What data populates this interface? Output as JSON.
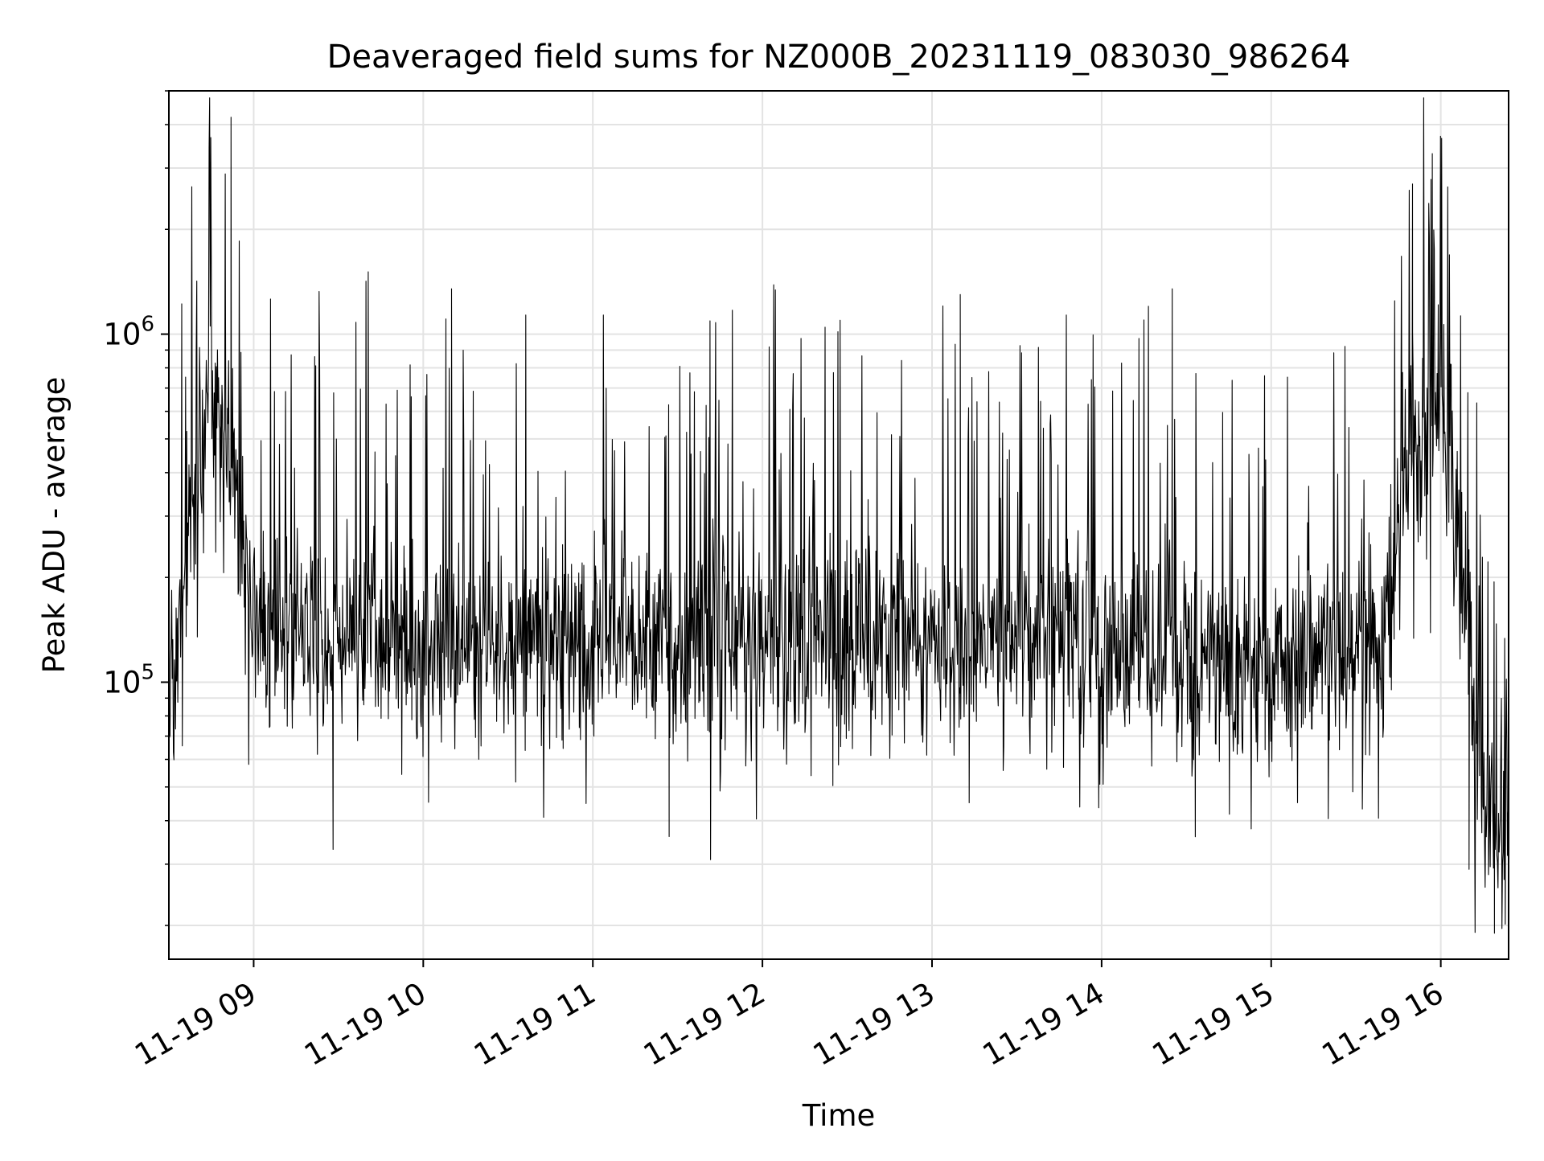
{
  "chart_data": {
    "type": "line",
    "title": "Deaveraged field sums for NZ000B_20231119_083030_986264",
    "xlabel": "Time",
    "ylabel": "Peak ADU - average",
    "x_axis": {
      "kind": "datetime",
      "range": [
        "2023-11-19 08:30",
        "2023-11-19 16:24"
      ],
      "tick_values": [
        "2023-11-19 09:00",
        "2023-11-19 10:00",
        "2023-11-19 11:00",
        "2023-11-19 12:00",
        "2023-11-19 13:00",
        "2023-11-19 14:00",
        "2023-11-19 15:00",
        "2023-11-19 16:00"
      ],
      "tick_labels": [
        "11-19 09",
        "11-19 10",
        "11-19 11",
        "11-19 12",
        "11-19 13",
        "11-19 14",
        "11-19 15",
        "11-19 16"
      ]
    },
    "y_axis": {
      "scale": "log",
      "range": [
        16000,
        5000000
      ],
      "major_ticks": [
        100000,
        1000000
      ],
      "major_tick_labels": [
        {
          "base": "10",
          "exp": "5"
        },
        {
          "base": "10",
          "exp": "6"
        }
      ]
    },
    "grid": true,
    "line_color": "#000000",
    "envelope_times": [
      "2023-11-19 08:30",
      "2023-11-19 08:36",
      "2023-11-19 08:45",
      "2023-11-19 08:52",
      "2023-11-19 09:00",
      "2023-11-19 09:30",
      "2023-11-19 10:00",
      "2023-11-19 11:00",
      "2023-11-19 12:00",
      "2023-11-19 13:00",
      "2023-11-19 14:00",
      "2023-11-19 14:40",
      "2023-11-19 15:00",
      "2023-11-19 15:40",
      "2023-11-19 15:50",
      "2023-11-19 16:00",
      "2023-11-19 16:08",
      "2023-11-19 16:12",
      "2023-11-19 16:16",
      "2023-11-19 16:20",
      "2023-11-19 16:24"
    ],
    "envelope_median": [
      80000,
      250000,
      700000,
      450000,
      140000,
      130000,
      130000,
      130000,
      130000,
      130000,
      130000,
      120000,
      110000,
      130000,
      450000,
      600000,
      200000,
      70000,
      45000,
      40000,
      35000
    ],
    "spikes": [
      {
        "x": "2023-11-19 08:52",
        "y": 4200000
      },
      {
        "x": "2023-11-19 08:50",
        "y": 1450000
      },
      {
        "x": "2023-11-19 10:10",
        "y": 1350000
      },
      {
        "x": "2023-11-19 13:10",
        "y": 1300000
      },
      {
        "x": "2023-11-19 14:25",
        "y": 1350000
      },
      {
        "x": "2023-11-19 15:50",
        "y": 2700000
      },
      {
        "x": "2023-11-19 15:57",
        "y": 3300000
      },
      {
        "x": "2023-11-19 11:27",
        "y": 36000
      },
      {
        "x": "2023-11-19 16:10",
        "y": 29000
      },
      {
        "x": "2023-11-19 16:19",
        "y": 19000
      },
      {
        "x": "2023-11-19 16:24",
        "y": 20000
      }
    ]
  }
}
